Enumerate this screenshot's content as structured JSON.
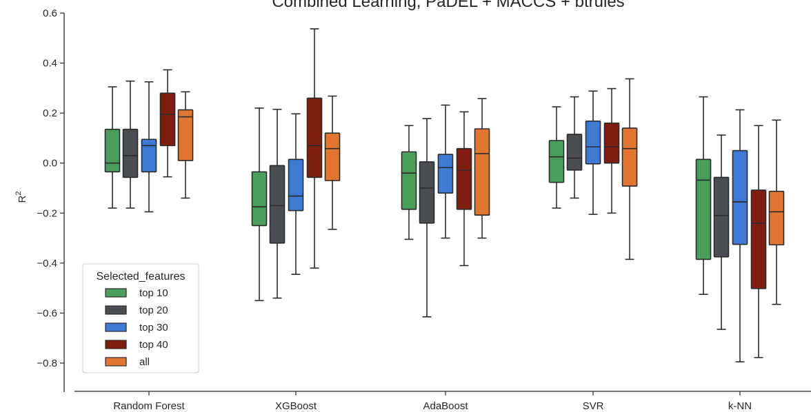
{
  "chart_data": {
    "type": "box",
    "title": "Combined Learning, PaDEL + MACCS + btrules",
    "ylabel": "R",
    "ylabel_sup": "2",
    "ylim": [
      -0.85,
      0.6
    ],
    "yticks": [
      -0.8,
      -0.6,
      -0.4,
      -0.2,
      0.0,
      0.2,
      0.4,
      0.6
    ],
    "ytick_labels": [
      "−0.8",
      "−0.6",
      "−0.4",
      "−0.2",
      "0.0",
      "0.2",
      "0.4",
      "0.6"
    ],
    "categories": [
      "Random Forest",
      "XGBoost",
      "AdaBoost",
      "SVR",
      "k-NN"
    ],
    "legend": {
      "title": "Selected_features",
      "position": "lower-left"
    },
    "series": [
      {
        "name": "top 10",
        "color": "#4a9e5c",
        "boxes": [
          {
            "whislo": -0.18,
            "q1": -0.035,
            "med": 0.0,
            "q3": 0.135,
            "whishi": 0.305
          },
          {
            "whislo": -0.55,
            "q1": -0.25,
            "med": -0.175,
            "q3": -0.035,
            "whishi": 0.22
          },
          {
            "whislo": -0.305,
            "q1": -0.185,
            "med": -0.04,
            "q3": 0.045,
            "whishi": 0.15
          },
          {
            "whislo": -0.18,
            "q1": -0.077,
            "med": 0.025,
            "q3": 0.09,
            "whishi": 0.225
          },
          {
            "whislo": -0.525,
            "q1": -0.385,
            "med": -0.068,
            "q3": 0.015,
            "whishi": 0.265
          }
        ]
      },
      {
        "name": "top 20",
        "color": "#4a4d52",
        "boxes": [
          {
            "whislo": -0.18,
            "q1": -0.057,
            "med": 0.03,
            "q3": 0.135,
            "whishi": 0.328
          },
          {
            "whislo": -0.54,
            "q1": -0.32,
            "med": -0.17,
            "q3": -0.01,
            "whishi": 0.215
          },
          {
            "whislo": -0.615,
            "q1": -0.24,
            "med": -0.1,
            "q3": 0.005,
            "whishi": 0.178
          },
          {
            "whislo": -0.14,
            "q1": -0.028,
            "med": 0.02,
            "q3": 0.115,
            "whishi": 0.265
          },
          {
            "whislo": -0.665,
            "q1": -0.375,
            "med": -0.21,
            "q3": -0.057,
            "whishi": 0.112
          }
        ]
      },
      {
        "name": "top 30",
        "color": "#3d7ad4",
        "boxes": [
          {
            "whislo": -0.195,
            "q1": -0.035,
            "med": 0.07,
            "q3": 0.095,
            "whishi": 0.325
          },
          {
            "whislo": -0.445,
            "q1": -0.19,
            "med": -0.132,
            "q3": 0.015,
            "whishi": 0.197
          },
          {
            "whislo": -0.3,
            "q1": -0.12,
            "med": -0.018,
            "q3": 0.035,
            "whishi": 0.232
          },
          {
            "whislo": -0.205,
            "q1": -0.003,
            "med": 0.065,
            "q3": 0.168,
            "whishi": 0.288
          },
          {
            "whislo": -0.795,
            "q1": -0.325,
            "med": -0.155,
            "q3": 0.05,
            "whishi": 0.213
          }
        ]
      },
      {
        "name": "top 40",
        "color": "#7f1d10",
        "boxes": [
          {
            "whislo": -0.055,
            "q1": 0.07,
            "med": 0.195,
            "q3": 0.28,
            "whishi": 0.373
          },
          {
            "whislo": -0.42,
            "q1": -0.057,
            "med": 0.07,
            "q3": 0.26,
            "whishi": 0.537
          },
          {
            "whislo": -0.41,
            "q1": -0.185,
            "med": -0.028,
            "q3": 0.058,
            "whishi": 0.205
          },
          {
            "whislo": -0.2,
            "q1": 0.0,
            "med": 0.065,
            "q3": 0.16,
            "whishi": 0.298
          },
          {
            "whislo": -0.778,
            "q1": -0.502,
            "med": -0.24,
            "q3": -0.108,
            "whishi": 0.15
          }
        ]
      },
      {
        "name": "all",
        "color": "#e0762f",
        "boxes": [
          {
            "whislo": -0.14,
            "q1": 0.01,
            "med": 0.185,
            "q3": 0.213,
            "whishi": 0.285
          },
          {
            "whislo": -0.265,
            "q1": -0.07,
            "med": 0.058,
            "q3": 0.12,
            "whishi": 0.268
          },
          {
            "whislo": -0.3,
            "q1": -0.208,
            "med": 0.038,
            "q3": 0.137,
            "whishi": 0.258
          },
          {
            "whislo": -0.385,
            "q1": -0.092,
            "med": 0.058,
            "q3": 0.14,
            "whishi": 0.337
          },
          {
            "whislo": -0.565,
            "q1": -0.327,
            "med": -0.195,
            "q3": -0.113,
            "whishi": 0.172
          }
        ]
      }
    ]
  }
}
